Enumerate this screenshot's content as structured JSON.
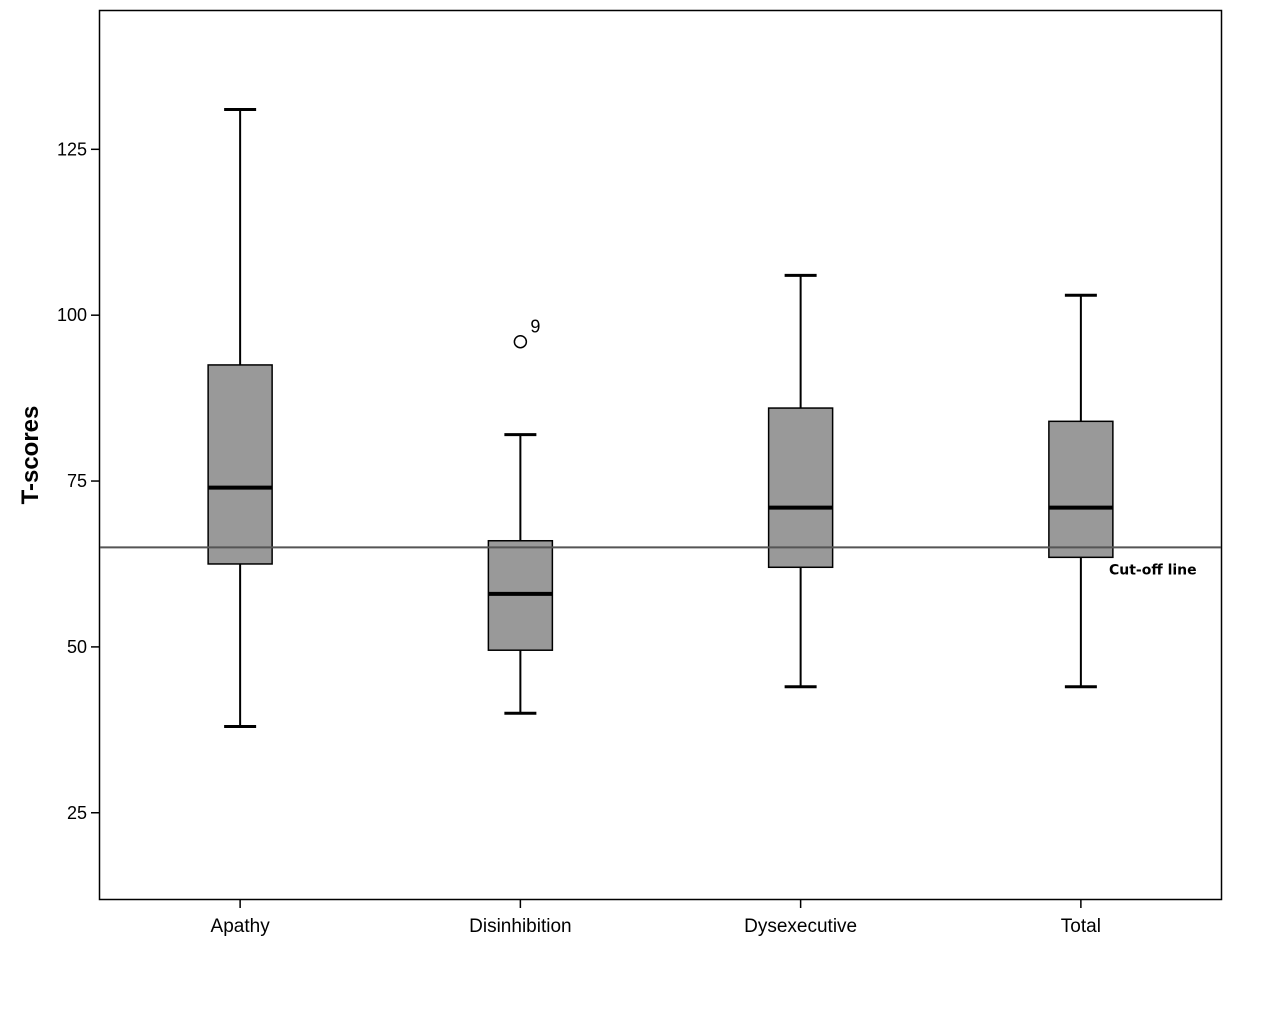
{
  "chart_data": {
    "type": "box",
    "title": "",
    "xlabel": "",
    "ylabel": "T-scores",
    "ylim": [
      12,
      146
    ],
    "yticks": [
      25,
      50,
      75,
      100,
      125
    ],
    "categories": [
      "Apathy",
      "Disinhibition",
      "Dysexecutive",
      "Total"
    ],
    "boxes": [
      {
        "category": "Apathy",
        "whisker_low": 38,
        "q1": 62.5,
        "median": 74,
        "q3": 92.5,
        "whisker_high": 131,
        "outliers": []
      },
      {
        "category": "Disinhibition",
        "whisker_low": 40,
        "q1": 49.5,
        "median": 58,
        "q3": 66,
        "whisker_high": 82,
        "outliers": [
          {
            "value": 96,
            "label": "9"
          }
        ]
      },
      {
        "category": "Dysexecutive",
        "whisker_low": 44,
        "q1": 62,
        "median": 71,
        "q3": 86,
        "whisker_high": 106,
        "outliers": []
      },
      {
        "category": "Total",
        "whisker_low": 44,
        "q1": 63.5,
        "median": 71,
        "q3": 84,
        "whisker_high": 103,
        "outliers": []
      }
    ],
    "reference_line": {
      "value": 65,
      "label": "Cut-off line"
    },
    "grid": false,
    "colors": {
      "box_fill": "#999999",
      "stroke": "#000000",
      "reference_line": "#555555"
    }
  }
}
